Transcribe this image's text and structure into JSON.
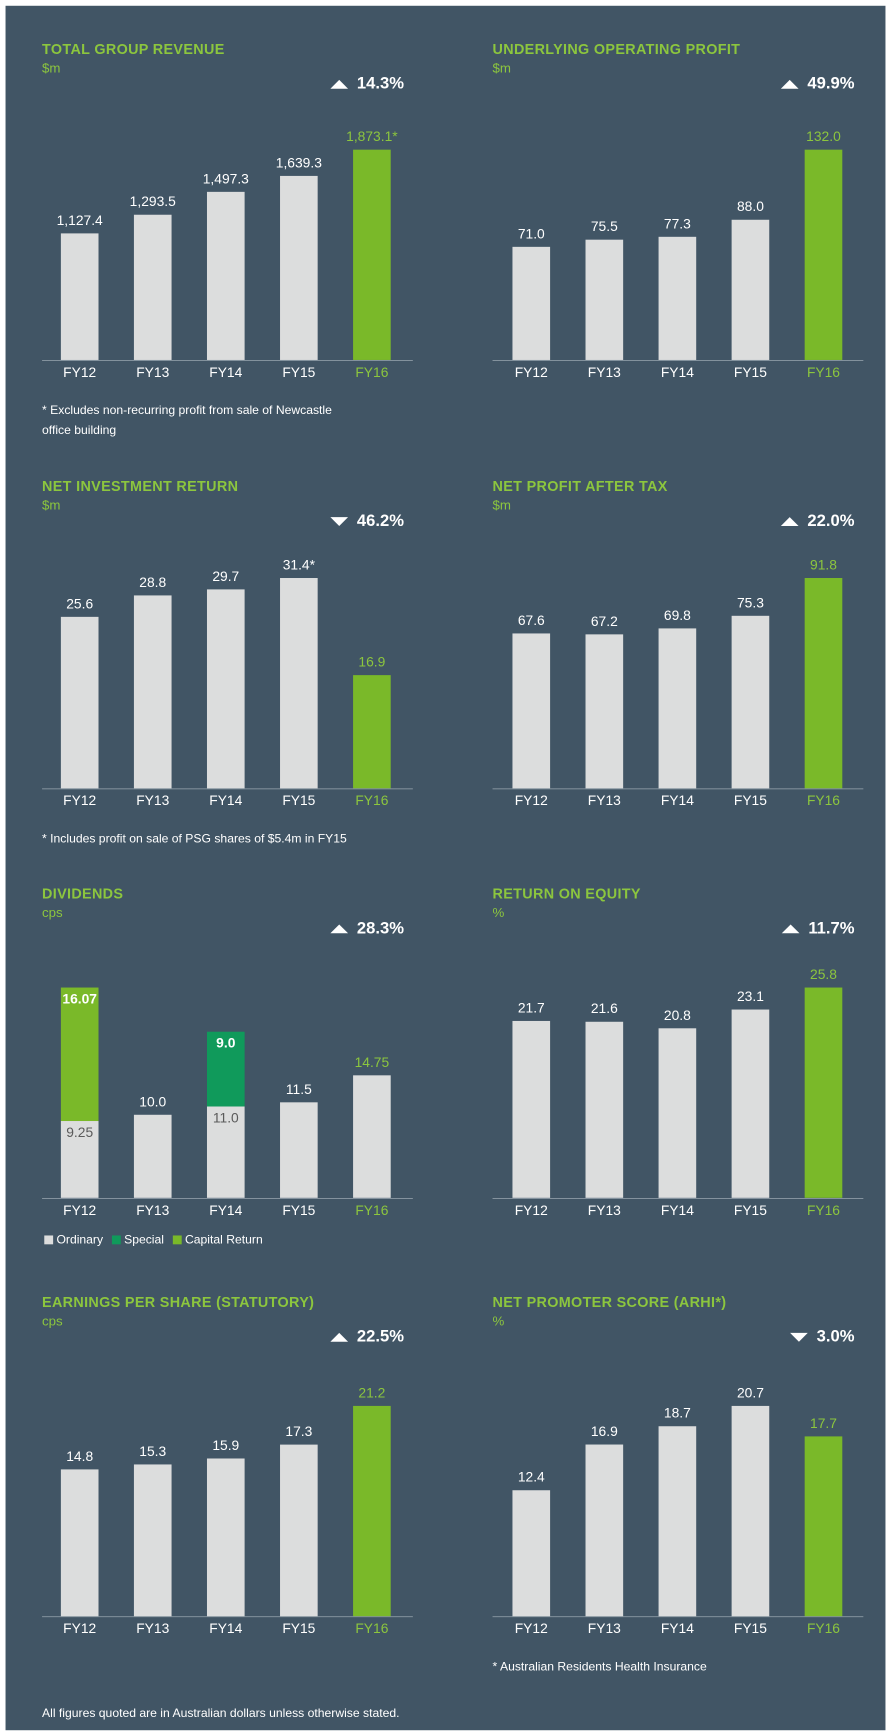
{
  "chart_data": [
    {
      "type": "bar",
      "title": "TOTAL GROUP REVENUE",
      "subtitle": "$m",
      "change": {
        "direction": "up",
        "label": "14.3%"
      },
      "categories": [
        "FY12",
        "FY13",
        "FY14",
        "FY15",
        "FY16"
      ],
      "values": [
        1127.4,
        1293.5,
        1497.3,
        1639.3,
        1873.1
      ],
      "value_labels": [
        "1,127.4",
        "1,293.5",
        "1,497.3",
        "1,639.3",
        "1,873.1*"
      ],
      "colors": [
        "#dcdddd",
        "#dcdddd",
        "#dcdddd",
        "#dcdddd",
        "#7ab929"
      ],
      "label_colors": [
        "#ffffff",
        "#ffffff",
        "#ffffff",
        "#ffffff",
        "#8cc63e"
      ],
      "footnote": [
        "* Excludes non-recurring profit from sale of Newcastle",
        "office building"
      ]
    },
    {
      "type": "bar",
      "title": "UNDERLYING OPERATING PROFIT",
      "subtitle": "$m",
      "change": {
        "direction": "up",
        "label": "49.9%"
      },
      "categories": [
        "FY12",
        "FY13",
        "FY14",
        "FY15",
        "FY16"
      ],
      "values": [
        71.0,
        75.5,
        77.3,
        88.0,
        132.0
      ],
      "value_labels": [
        "71.0",
        "75.5",
        "77.3",
        "88.0",
        "132.0"
      ],
      "colors": [
        "#dcdddd",
        "#dcdddd",
        "#dcdddd",
        "#dcdddd",
        "#7ab929"
      ],
      "label_colors": [
        "#ffffff",
        "#ffffff",
        "#ffffff",
        "#ffffff",
        "#8cc63e"
      ]
    },
    {
      "type": "bar",
      "title": "NET INVESTMENT RETURN",
      "subtitle": "$m",
      "change": {
        "direction": "down",
        "label": "46.2%"
      },
      "categories": [
        "FY12",
        "FY13",
        "FY14",
        "FY15",
        "FY16"
      ],
      "values": [
        25.6,
        28.8,
        29.7,
        31.4,
        16.9
      ],
      "value_labels": [
        "25.6",
        "28.8",
        "29.7",
        "31.4*",
        "16.9"
      ],
      "colors": [
        "#dcdddd",
        "#dcdddd",
        "#dcdddd",
        "#dcdddd",
        "#7ab929"
      ],
      "label_colors": [
        "#ffffff",
        "#ffffff",
        "#ffffff",
        "#ffffff",
        "#8cc63e"
      ],
      "footnote": [
        "* Includes profit on sale of PSG shares of $5.4m in FY15"
      ]
    },
    {
      "type": "bar",
      "title": "NET PROFIT AFTER TAX",
      "subtitle": "$m",
      "change": {
        "direction": "up",
        "label": "22.0%"
      },
      "categories": [
        "FY12",
        "FY13",
        "FY14",
        "FY15",
        "FY16"
      ],
      "values": [
        67.6,
        67.2,
        69.8,
        75.3,
        91.8
      ],
      "value_labels": [
        "67.6",
        "67.2",
        "69.8",
        "75.3",
        "91.8"
      ],
      "colors": [
        "#dcdddd",
        "#dcdddd",
        "#dcdddd",
        "#dcdddd",
        "#7ab929"
      ],
      "label_colors": [
        "#ffffff",
        "#ffffff",
        "#ffffff",
        "#ffffff",
        "#8cc63e"
      ]
    },
    {
      "type": "stacked_bar",
      "title": "DIVIDENDS",
      "subtitle": "cps",
      "change": {
        "direction": "up",
        "label": "28.3%"
      },
      "categories": [
        "FY12",
        "FY13",
        "FY14",
        "FY15",
        "FY16"
      ],
      "series": [
        {
          "name": "Ordinary",
          "color": "#dcdddd",
          "values": [
            9.25,
            10.0,
            11.0,
            11.5,
            14.75
          ],
          "value_labels": [
            "9.25",
            "10.0",
            "11.0",
            "11.5",
            "14.75"
          ]
        },
        {
          "name": "Special",
          "color": "#109a5b",
          "values": [
            null,
            null,
            9.0,
            null,
            null
          ],
          "value_labels": [
            null,
            null,
            "9.0",
            null,
            null
          ]
        },
        {
          "name": "Capital Return",
          "color": "#7ab929",
          "values": [
            16.07,
            null,
            null,
            null,
            null
          ],
          "value_labels": [
            "16.07",
            null,
            null,
            null,
            null
          ]
        }
      ],
      "label_colors": [
        "#ffffff",
        "#ffffff",
        "#ffffff",
        "#ffffff",
        "#8cc63e"
      ]
    },
    {
      "type": "bar",
      "title": "RETURN ON EQUITY",
      "subtitle": "%",
      "change": {
        "direction": "up",
        "label": "11.7%"
      },
      "categories": [
        "FY12",
        "FY13",
        "FY14",
        "FY15",
        "FY16"
      ],
      "values": [
        21.7,
        21.6,
        20.8,
        23.1,
        25.8
      ],
      "value_labels": [
        "21.7",
        "21.6",
        "20.8",
        "23.1",
        "25.8"
      ],
      "colors": [
        "#dcdddd",
        "#dcdddd",
        "#dcdddd",
        "#dcdddd",
        "#7ab929"
      ],
      "label_colors": [
        "#ffffff",
        "#ffffff",
        "#ffffff",
        "#ffffff",
        "#8cc63e"
      ]
    },
    {
      "type": "bar",
      "title": "EARNINGS PER SHARE (STATUTORY)",
      "subtitle": "cps",
      "change": {
        "direction": "up",
        "label": "22.5%"
      },
      "categories": [
        "FY12",
        "FY13",
        "FY14",
        "FY15",
        "FY16"
      ],
      "values": [
        14.8,
        15.3,
        15.9,
        17.3,
        21.2
      ],
      "value_labels": [
        "14.8",
        "15.3",
        "15.9",
        "17.3",
        "21.2"
      ],
      "colors": [
        "#dcdddd",
        "#dcdddd",
        "#dcdddd",
        "#dcdddd",
        "#7ab929"
      ],
      "label_colors": [
        "#ffffff",
        "#ffffff",
        "#ffffff",
        "#ffffff",
        "#8cc63e"
      ]
    },
    {
      "type": "bar",
      "title": "NET PROMOTER SCORE (ARHI*)",
      "subtitle": "%",
      "change": {
        "direction": "down",
        "label": "3.0%"
      },
      "categories": [
        "FY12",
        "FY13",
        "FY14",
        "FY15",
        "FY16"
      ],
      "values": [
        12.4,
        16.9,
        18.7,
        20.7,
        17.7
      ],
      "value_labels": [
        "12.4",
        "16.9",
        "18.7",
        "20.7",
        "17.7"
      ],
      "colors": [
        "#dcdddd",
        "#dcdddd",
        "#dcdddd",
        "#dcdddd",
        "#7ab929"
      ],
      "label_colors": [
        "#ffffff",
        "#ffffff",
        "#ffffff",
        "#ffffff",
        "#8cc63e"
      ],
      "footnote": [
        "* Australian Residents Health Insurance"
      ]
    }
  ],
  "footer": "All figures quoted are in Australian dollars unless otherwise stated."
}
